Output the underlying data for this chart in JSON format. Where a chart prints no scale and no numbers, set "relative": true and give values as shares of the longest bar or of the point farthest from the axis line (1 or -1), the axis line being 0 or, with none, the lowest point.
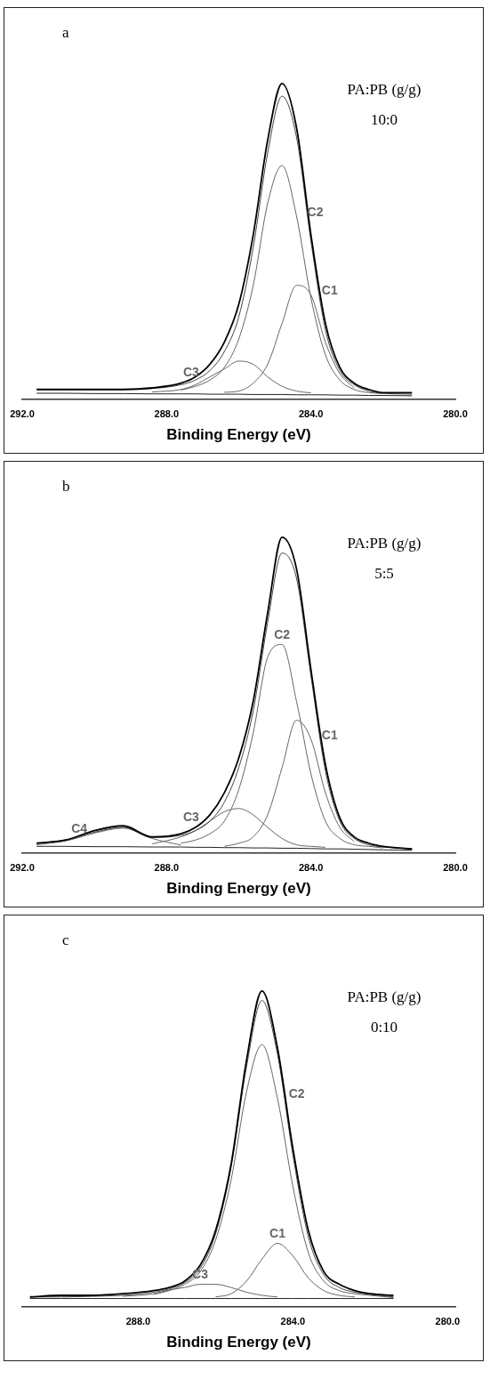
{
  "chart_data": [
    {
      "type": "line",
      "relative": true,
      "xlabel": "Binding Energy (eV)",
      "xlim": [
        292,
        280
      ],
      "xticks": [
        {
          "value": 292,
          "label": "292.0"
        },
        {
          "value": 288,
          "label": "288.0"
        },
        {
          "value": 284,
          "label": "284.0"
        },
        {
          "value": 280,
          "label": "280.0"
        }
      ],
      "grid": false,
      "legend": false,
      "marker": "none",
      "line_style": "solid",
      "tick_labels": "x",
      "annotations": [
        "a",
        "PA:PB (g/g)",
        "10:0"
      ],
      "x": [
        291.6,
        290.8,
        290.0,
        289.2,
        288.4,
        287.6,
        287.2,
        286.8,
        286.4,
        286.0,
        285.6,
        285.2,
        284.8,
        284.4,
        284.0,
        283.6,
        283.2,
        282.8,
        282.4,
        282.0,
        281.2
      ],
      "series": [
        {
          "color": "#000000",
          "values": [
            0.03,
            0.03,
            0.03,
            0.03,
            0.035,
            0.05,
            0.07,
            0.11,
            0.18,
            0.3,
            0.52,
            0.82,
            1.0,
            0.86,
            0.52,
            0.24,
            0.1,
            0.05,
            0.03,
            0.02,
            0.02
          ]
        },
        {
          "color": "#444444",
          "values": [
            0.03,
            0.03,
            0.03,
            0.03,
            0.033,
            0.045,
            0.06,
            0.09,
            0.15,
            0.26,
            0.48,
            0.78,
            0.96,
            0.83,
            0.5,
            0.22,
            0.09,
            0.045,
            0.025,
            0.018,
            0.015
          ]
        },
        {
          "name": "C2",
          "color": "#666666",
          "x": [
            287.6,
            287.2,
            286.8,
            286.4,
            286.0,
            285.6,
            285.2,
            284.8,
            284.4,
            284.0,
            283.6,
            283.2,
            282.8,
            282.4,
            282.0
          ],
          "values": [
            0.028,
            0.04,
            0.06,
            0.1,
            0.19,
            0.36,
            0.62,
            0.74,
            0.58,
            0.32,
            0.14,
            0.06,
            0.03,
            0.02,
            0.017
          ]
        },
        {
          "name": "C1",
          "color": "#666666",
          "x": [
            286.4,
            286.0,
            285.6,
            285.2,
            284.8,
            284.4,
            284.0,
            283.6,
            283.2,
            282.8
          ],
          "values": [
            0.021,
            0.025,
            0.05,
            0.11,
            0.24,
            0.36,
            0.33,
            0.18,
            0.08,
            0.035
          ]
        },
        {
          "name": "C3",
          "color": "#666666",
          "x": [
            288.4,
            287.6,
            287.2,
            286.8,
            286.4,
            286.0,
            285.6,
            285.2,
            284.8,
            284.4,
            284.0
          ],
          "values": [
            0.022,
            0.03,
            0.045,
            0.07,
            0.095,
            0.12,
            0.11,
            0.07,
            0.04,
            0.025,
            0.019
          ]
        },
        {
          "color": "#222222",
          "values": [
            0.018,
            0.018,
            0.017,
            0.017,
            0.016,
            0.016,
            0.016,
            0.015,
            0.015,
            0.015,
            0.014,
            0.014,
            0.014,
            0.013,
            0.013,
            0.013,
            0.012,
            0.012,
            0.011,
            0.011,
            0.01
          ]
        }
      ]
    },
    {
      "type": "line",
      "relative": true,
      "xlabel": "Binding Energy (eV)",
      "xlim": [
        292,
        280
      ],
      "xticks": [
        {
          "value": 292,
          "label": "292.0"
        },
        {
          "value": 288,
          "label": "288.0"
        },
        {
          "value": 284,
          "label": "284.0"
        },
        {
          "value": 280,
          "label": "280.0"
        }
      ],
      "grid": false,
      "legend": false,
      "marker": "none",
      "line_style": "solid",
      "tick_labels": "x",
      "annotations": [
        "b",
        "PA:PB (g/g)",
        "5:5"
      ],
      "x": [
        291.6,
        290.8,
        290.0,
        289.2,
        288.4,
        287.6,
        287.2,
        286.8,
        286.4,
        286.0,
        285.6,
        285.2,
        284.8,
        284.4,
        284.0,
        283.6,
        283.2,
        282.8,
        282.4,
        282.0,
        281.2
      ],
      "series": [
        {
          "color": "#000000",
          "values": [
            0.03,
            0.04,
            0.07,
            0.085,
            0.05,
            0.06,
            0.08,
            0.12,
            0.19,
            0.3,
            0.48,
            0.76,
            1.0,
            0.9,
            0.58,
            0.28,
            0.11,
            0.05,
            0.03,
            0.02,
            0.012
          ]
        },
        {
          "color": "#444444",
          "values": [
            0.03,
            0.04,
            0.065,
            0.08,
            0.048,
            0.055,
            0.07,
            0.1,
            0.16,
            0.27,
            0.45,
            0.73,
            0.95,
            0.87,
            0.56,
            0.26,
            0.1,
            0.045,
            0.025,
            0.018,
            0.012
          ]
        },
        {
          "name": "C2",
          "color": "#666666",
          "x": [
            287.6,
            287.2,
            286.8,
            286.4,
            286.0,
            285.6,
            285.2,
            284.8,
            284.4,
            284.0,
            283.6,
            283.2,
            282.8,
            282.4,
            282.0
          ],
          "values": [
            0.03,
            0.04,
            0.06,
            0.1,
            0.2,
            0.38,
            0.62,
            0.66,
            0.48,
            0.25,
            0.1,
            0.045,
            0.025,
            0.02,
            0.015
          ]
        },
        {
          "name": "C1",
          "color": "#666666",
          "x": [
            286.4,
            286.0,
            285.6,
            285.2,
            284.8,
            284.4,
            284.0,
            283.6,
            283.2,
            282.8
          ],
          "values": [
            0.02,
            0.03,
            0.05,
            0.12,
            0.27,
            0.42,
            0.36,
            0.19,
            0.08,
            0.035
          ]
        },
        {
          "name": "C3",
          "color": "#666666",
          "x": [
            288.4,
            287.6,
            287.2,
            286.8,
            286.4,
            286.0,
            285.6,
            285.2,
            284.8,
            284.4,
            284.0,
            283.6
          ],
          "values": [
            0.028,
            0.05,
            0.07,
            0.1,
            0.13,
            0.14,
            0.12,
            0.08,
            0.045,
            0.025,
            0.02,
            0.017
          ]
        },
        {
          "name": "C4",
          "color": "#666666",
          "x": [
            291.6,
            290.8,
            290.0,
            289.2,
            288.4,
            287.6
          ],
          "values": [
            0.025,
            0.037,
            0.062,
            0.078,
            0.045,
            0.024
          ]
        },
        {
          "color": "#222222",
          "values": [
            0.02,
            0.02,
            0.019,
            0.019,
            0.018,
            0.018,
            0.017,
            0.017,
            0.016,
            0.016,
            0.015,
            0.015,
            0.014,
            0.014,
            0.013,
            0.012,
            0.012,
            0.011,
            0.01,
            0.009,
            0.008
          ]
        }
      ]
    },
    {
      "type": "line",
      "relative": true,
      "xlabel": "Binding Energy (eV)",
      "xlim": [
        291,
        279.8
      ],
      "xticks": [
        {
          "value": 288,
          "label": "288.0"
        },
        {
          "value": 284,
          "label": "284.0"
        },
        {
          "value": 280,
          "label": "280.0"
        }
      ],
      "grid": false,
      "legend": false,
      "marker": "none",
      "line_style": "solid",
      "tick_labels": "x",
      "annotations": [
        "c",
        "PA:PB (g/g)",
        "0:10"
      ],
      "x": [
        290.8,
        290.0,
        289.2,
        288.4,
        287.6,
        287.2,
        286.8,
        286.4,
        286.0,
        285.6,
        285.2,
        284.8,
        284.4,
        284.0,
        283.6,
        283.2,
        282.8,
        282.4,
        282.0,
        281.4
      ],
      "series": [
        {
          "color": "#000000",
          "values": [
            0.03,
            0.035,
            0.035,
            0.04,
            0.05,
            0.06,
            0.08,
            0.13,
            0.24,
            0.45,
            0.78,
            1.0,
            0.82,
            0.5,
            0.24,
            0.11,
            0.07,
            0.05,
            0.04,
            0.035
          ]
        },
        {
          "color": "#444444",
          "values": [
            0.03,
            0.03,
            0.032,
            0.035,
            0.045,
            0.055,
            0.075,
            0.12,
            0.23,
            0.44,
            0.76,
            0.97,
            0.8,
            0.48,
            0.22,
            0.1,
            0.06,
            0.045,
            0.038,
            0.03
          ]
        },
        {
          "name": "C2",
          "color": "#666666",
          "x": [
            287.6,
            287.2,
            286.8,
            286.4,
            286.0,
            285.6,
            285.2,
            284.8,
            284.4,
            284.0,
            283.6,
            283.2,
            282.8,
            282.4,
            282.0,
            281.4
          ],
          "values": [
            0.038,
            0.05,
            0.07,
            0.11,
            0.21,
            0.4,
            0.68,
            0.83,
            0.66,
            0.38,
            0.17,
            0.08,
            0.05,
            0.04,
            0.035,
            0.028
          ]
        },
        {
          "name": "C1",
          "color": "#666666",
          "x": [
            286.0,
            285.6,
            285.2,
            284.8,
            284.4,
            284.0,
            283.6,
            283.2,
            282.8,
            282.4
          ],
          "values": [
            0.03,
            0.04,
            0.08,
            0.15,
            0.2,
            0.16,
            0.09,
            0.05,
            0.035,
            0.03
          ]
        },
        {
          "name": "C3",
          "color": "#666666",
          "x": [
            288.4,
            287.6,
            287.2,
            286.8,
            286.4,
            286.0,
            285.6,
            285.2,
            284.8,
            284.4
          ],
          "values": [
            0.032,
            0.04,
            0.052,
            0.06,
            0.07,
            0.07,
            0.06,
            0.045,
            0.035,
            0.03
          ]
        },
        {
          "color": "#222222",
          "values": [
            0.025,
            0.025,
            0.025,
            0.025,
            0.025,
            0.025,
            0.025,
            0.025,
            0.025,
            0.025,
            0.025,
            0.025,
            0.025,
            0.025,
            0.025,
            0.025,
            0.025,
            0.025,
            0.025,
            0.025
          ]
        }
      ]
    }
  ]
}
